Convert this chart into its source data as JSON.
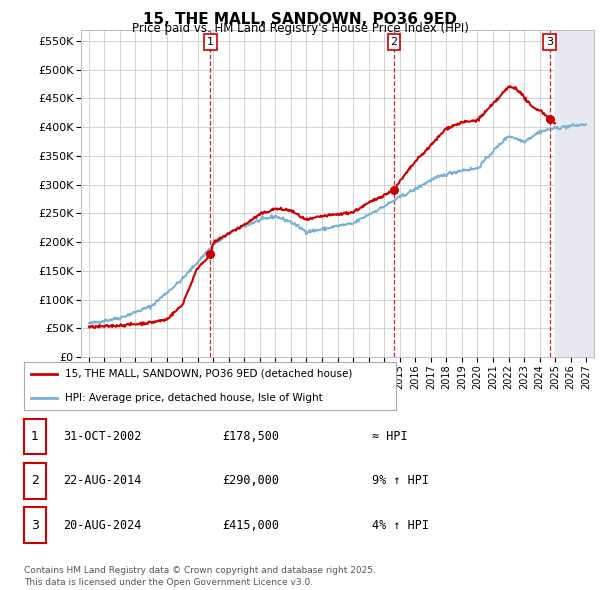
{
  "title": "15, THE MALL, SANDOWN, PO36 9ED",
  "subtitle": "Price paid vs. HM Land Registry's House Price Index (HPI)",
  "xlim": [
    1994.5,
    2027.5
  ],
  "ylim": [
    0,
    570000
  ],
  "yticks": [
    0,
    50000,
    100000,
    150000,
    200000,
    250000,
    300000,
    350000,
    400000,
    450000,
    500000,
    550000
  ],
  "ytick_labels": [
    "£0",
    "£50K",
    "£100K",
    "£150K",
    "£200K",
    "£250K",
    "£300K",
    "£350K",
    "£400K",
    "£450K",
    "£500K",
    "£550K"
  ],
  "sale_dates": [
    2002.83,
    2014.64,
    2024.64
  ],
  "sale_prices": [
    178500,
    290000,
    415000
  ],
  "sale_labels": [
    "1",
    "2",
    "3"
  ],
  "vline_color": "#cc0000",
  "hpi_color": "#7ab0d4",
  "price_color": "#cc0000",
  "background_color": "#ffffff",
  "grid_color": "#cccccc",
  "legend_line1": "15, THE MALL, SANDOWN, PO36 9ED (detached house)",
  "legend_line2": "HPI: Average price, detached house, Isle of Wight",
  "table_rows": [
    {
      "num": "1",
      "date": "31-OCT-2002",
      "price": "£178,500",
      "rel": "≈ HPI"
    },
    {
      "num": "2",
      "date": "22-AUG-2014",
      "price": "£290,000",
      "rel": "9% ↑ HPI"
    },
    {
      "num": "3",
      "date": "20-AUG-2024",
      "price": "£415,000",
      "rel": "4% ↑ HPI"
    }
  ],
  "footer": "Contains HM Land Registry data © Crown copyright and database right 2025.\nThis data is licensed under the Open Government Licence v3.0."
}
